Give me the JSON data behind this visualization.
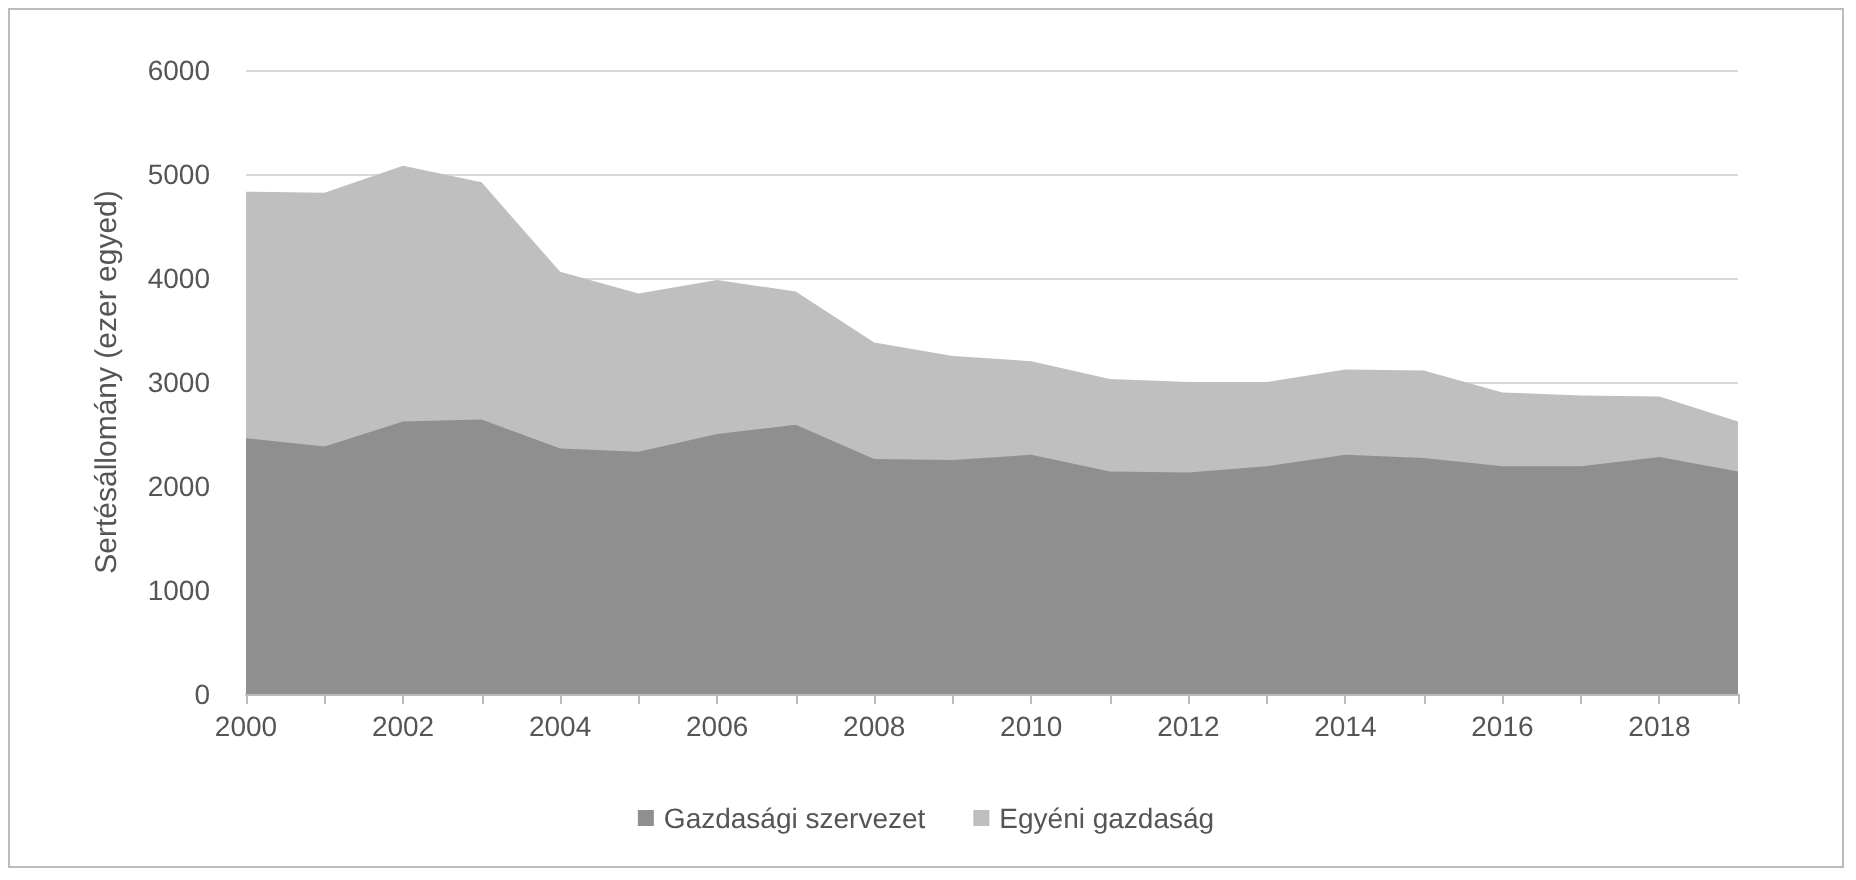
{
  "chart_data": {
    "type": "area",
    "stacked": true,
    "ylabel": "Sertésállomány (ezer egyed)",
    "x": [
      2000,
      2001,
      2002,
      2003,
      2004,
      2005,
      2006,
      2007,
      2008,
      2009,
      2010,
      2011,
      2012,
      2013,
      2014,
      2015,
      2016,
      2017,
      2018,
      2019
    ],
    "series": [
      {
        "name": "Gazdasági szervezet",
        "color": "#8f8f8f",
        "values": [
          2460,
          2380,
          2620,
          2640,
          2360,
          2330,
          2500,
          2590,
          2260,
          2250,
          2300,
          2140,
          2130,
          2190,
          2300,
          2270,
          2190,
          2190,
          2280,
          2140
        ]
      },
      {
        "name": "Egyéni gazdaság",
        "color": "#bfbfbf",
        "values": [
          2370,
          2440,
          2460,
          2280,
          1700,
          1520,
          1480,
          1280,
          1120,
          1000,
          900,
          890,
          870,
          810,
          820,
          840,
          710,
          680,
          580,
          480
        ]
      }
    ],
    "xlim": [
      2000,
      2019
    ],
    "xticks": [
      2000,
      {
        "value": 2001,
        "label": null
      },
      2002,
      {
        "value": 2003,
        "label": null
      },
      2004,
      {
        "value": 2005,
        "label": null
      },
      2006,
      {
        "value": 2007,
        "label": null
      },
      2008,
      {
        "value": 2009,
        "label": null
      },
      2010,
      {
        "value": 2011,
        "label": null
      },
      2012,
      {
        "value": 2013,
        "label": null
      },
      2014,
      {
        "value": 2015,
        "label": null
      },
      2016,
      {
        "value": 2017,
        "label": null
      },
      2018,
      {
        "value": 2019,
        "label": null
      }
    ],
    "ylim": [
      0,
      6000
    ],
    "yticks": [
      0,
      1000,
      2000,
      3000,
      4000,
      5000,
      6000
    ],
    "grid": "y",
    "legend": "bottom"
  }
}
